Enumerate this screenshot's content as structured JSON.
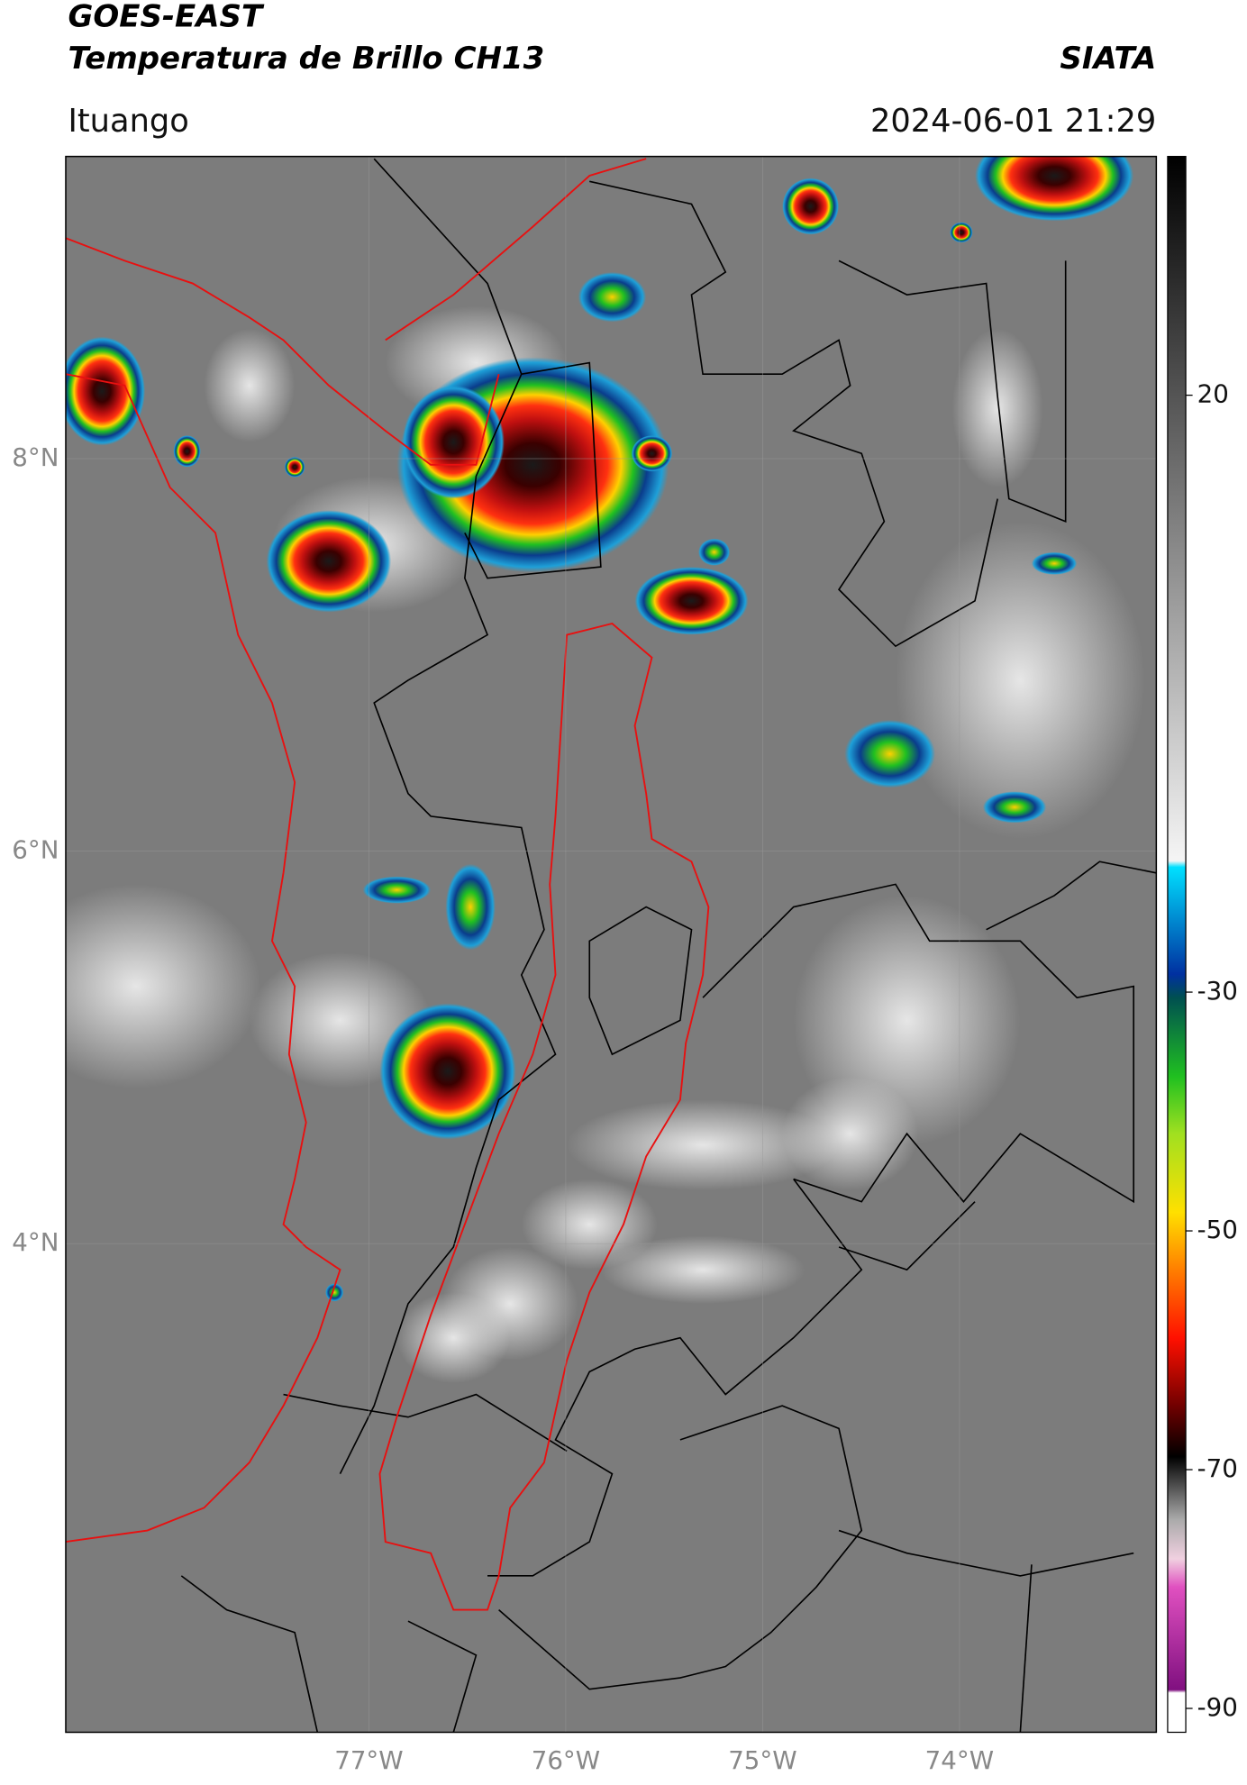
{
  "header": {
    "title": "GOES-EAST",
    "subtitle": "Temperatura de Brillo CH13",
    "source": "SIATA",
    "location": "Ituango",
    "timestamp": "2024-06-01 21:29"
  },
  "chart_data": {
    "type": "map",
    "xlim": [
      -78.54,
      -73.0
    ],
    "ylim": [
      1.51,
      9.54
    ],
    "xticks": [
      {
        "value": -77,
        "label": "77°W"
      },
      {
        "value": -76,
        "label": "76°W"
      },
      {
        "value": -75,
        "label": "75°W"
      },
      {
        "value": -74,
        "label": "74°W"
      }
    ],
    "yticks": [
      {
        "value": 8,
        "label": "8°N"
      },
      {
        "value": 6,
        "label": "6°N"
      },
      {
        "value": 4,
        "label": "4°N"
      }
    ],
    "colorbar": {
      "clim": [
        40,
        -92
      ],
      "ticks": [
        20,
        -30,
        -50,
        -70,
        -90
      ]
    },
    "grid": true
  }
}
